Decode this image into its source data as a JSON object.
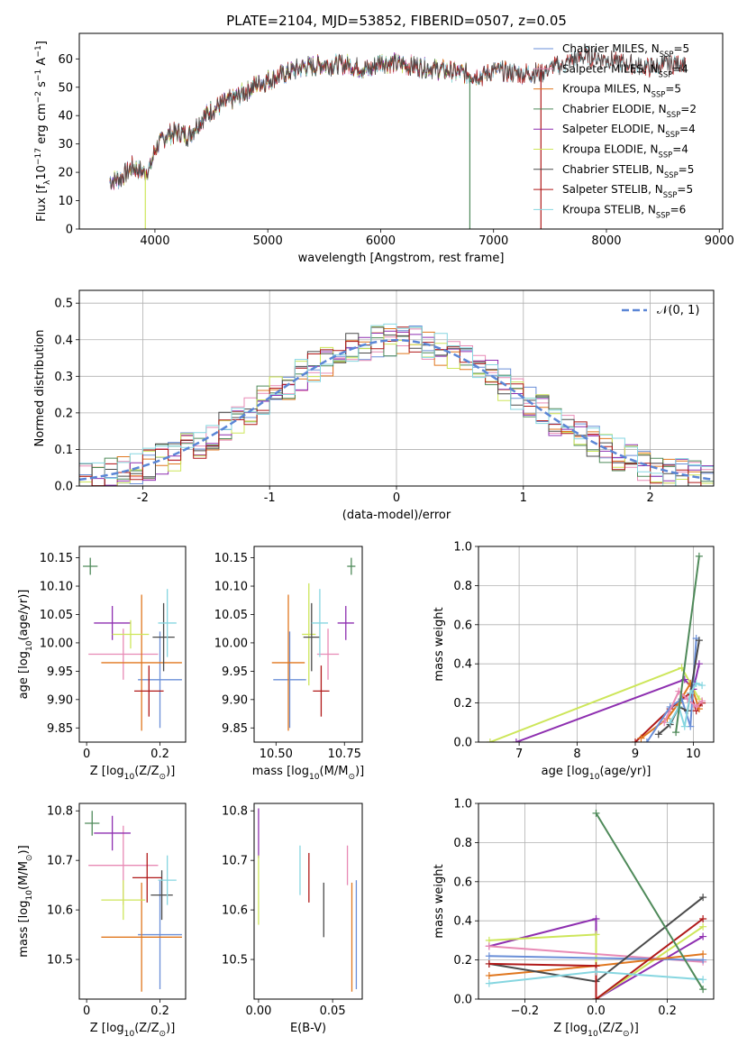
{
  "title": "PLATE=2104, MJD=53852, FIBERID=0507, z=0.05",
  "colors": {
    "chabrier_miles": "#6a8fd8",
    "salpeter_miles": "#e88ab5",
    "kroupa_miles": "#e0771f",
    "chabrier_elodie": "#4f8a5a",
    "salpeter_elodie": "#8e2fb0",
    "kroupa_elodie": "#cde65a",
    "chabrier_stelib": "#4a4a4a",
    "salpeter_stelib": "#b01919",
    "kroupa_stelib": "#86d6e0",
    "normal": "#5b86d6"
  },
  "chart_data": [
    {
      "id": "spectrum",
      "type": "line",
      "title": "PLATE=2104, MJD=53852, FIBERID=0507, z=0.05",
      "xlabel": "wavelength [Angstrom, rest frame]",
      "ylabel_parts": [
        "Flux [f",
        "λ",
        "10",
        "−17",
        " erg cm",
        "−2",
        " s",
        "−1",
        " A",
        "−1",
        "]"
      ],
      "xlim": [
        3330,
        9030
      ],
      "ylim": [
        0,
        69
      ],
      "xticks": [
        4000,
        5000,
        6000,
        7000,
        8000,
        9000
      ],
      "yticks": [
        0,
        10,
        20,
        30,
        40,
        50,
        60
      ],
      "grid": false,
      "legend_position": "right",
      "legend": [
        {
          "prefix": "Chabrier MILES, N",
          "sub": "SSP",
          "suffix": "=5",
          "color_key": "chabrier_miles"
        },
        {
          "prefix": "Salpeter MILES, N",
          "sub": "SSP",
          "suffix": "=4",
          "color_key": "salpeter_miles"
        },
        {
          "prefix": "Kroupa MILES, N",
          "sub": "SSP",
          "suffix": "=5",
          "color_key": "kroupa_miles"
        },
        {
          "prefix": "Chabrier ELODIE, N",
          "sub": "SSP",
          "suffix": "=2",
          "color_key": "chabrier_elodie"
        },
        {
          "prefix": "Salpeter ELODIE, N",
          "sub": "SSP",
          "suffix": "=4",
          "color_key": "salpeter_elodie"
        },
        {
          "prefix": "Kroupa ELODIE, N",
          "sub": "SSP",
          "suffix": "=4",
          "color_key": "kroupa_elodie"
        },
        {
          "prefix": "Chabrier STELIB, N",
          "sub": "SSP",
          "suffix": "=5",
          "color_key": "chabrier_stelib"
        },
        {
          "prefix": "Salpeter STELIB, N",
          "sub": "SSP",
          "suffix": "=5",
          "color_key": "salpeter_stelib"
        },
        {
          "prefix": "Kroupa STELIB, N",
          "sub": "SSP",
          "suffix": "=6",
          "color_key": "kroupa_stelib"
        }
      ],
      "continuum": {
        "x": [
          3600,
          3700,
          3800,
          3900,
          3960,
          4000,
          4100,
          4200,
          4300,
          4400,
          4500,
          4700,
          4900,
          5100,
          5300,
          5500,
          5700,
          5900,
          6000,
          6200,
          6400,
          6560,
          6700,
          6900,
          7000,
          7200,
          7400,
          7600,
          7800,
          8000,
          8200,
          8400,
          8700
        ],
        "y": [
          17,
          18,
          22,
          20,
          22,
          28,
          33,
          34,
          33,
          38,
          42,
          46,
          51,
          54,
          57,
          58,
          58,
          56,
          59,
          58,
          57,
          56,
          55,
          54,
          56,
          55,
          55,
          58,
          61,
          60,
          58,
          57,
          59
        ]
      },
      "spikes": [
        {
          "x": 3915,
          "y": 0
        },
        {
          "x": 6790,
          "y": 0
        },
        {
          "x": 7420,
          "y": 0
        }
      ],
      "end_wavelength": {
        "miles": 7400,
        "elodie": 6800,
        "stelib": 8700
      }
    },
    {
      "id": "residuals",
      "type": "line",
      "xlabel": "(data-model)/error",
      "ylabel": "Normed distribution",
      "xlim": [
        -2.5,
        2.5
      ],
      "ylim": [
        0,
        0.535
      ],
      "xticks": [
        -2,
        -1,
        0,
        1,
        2
      ],
      "yticks": [
        0.0,
        0.1,
        0.2,
        0.3,
        0.4,
        0.5
      ],
      "grid": true,
      "legend_position": "upper right",
      "legend": [
        {
          "label": "𝒩(0, 1)",
          "color_key": "normal",
          "style": "dashed"
        }
      ],
      "bin_width": 0.1
    },
    {
      "id": "age_vs_Z",
      "type": "scatter",
      "xlabel_parts": [
        "Z [log",
        "10",
        "(Z/Z",
        "⊙",
        ")]"
      ],
      "ylabel_parts": [
        "age  [log",
        "10",
        "(age/yr)]"
      ],
      "xlim": [
        -0.02,
        0.27
      ],
      "ylim": [
        9.825,
        10.17
      ],
      "xticks": [
        0.0,
        0.2
      ],
      "yticks": [
        9.85,
        9.9,
        9.95,
        10.0,
        10.05,
        10.1,
        10.15
      ],
      "ytick_labels": [
        "9.85",
        "9.90",
        "9.95",
        "10.00",
        "10.05",
        "10.10",
        "10.15"
      ],
      "grid": false,
      "points": [
        {
          "key": "chabrier_miles",
          "x": 0.2,
          "xerr": 0.06,
          "y": 9.935,
          "yerr": 0.085
        },
        {
          "key": "salpeter_miles",
          "x": 0.1,
          "xerr": 0.095,
          "y": 9.98,
          "yerr": 0.045
        },
        {
          "key": "kroupa_miles",
          "x": 0.15,
          "xerr": 0.11,
          "y": 9.965,
          "yerr": 0.12
        },
        {
          "key": "chabrier_elodie",
          "x": 0.01,
          "xerr": 0.02,
          "y": 10.135,
          "yerr": 0.015
        },
        {
          "key": "salpeter_elodie",
          "x": 0.07,
          "xerr": 0.05,
          "y": 10.035,
          "yerr": 0.03
        },
        {
          "key": "kroupa_elodie",
          "x": 0.12,
          "xerr": 0.05,
          "y": 10.015,
          "yerr": 0.025
        },
        {
          "key": "chabrier_stelib",
          "x": 0.21,
          "xerr": 0.03,
          "y": 10.01,
          "yerr": 0.06
        },
        {
          "key": "salpeter_stelib",
          "x": 0.17,
          "xerr": 0.04,
          "y": 9.915,
          "yerr": 0.045
        },
        {
          "key": "kroupa_stelib",
          "x": 0.22,
          "xerr": 0.025,
          "y": 10.035,
          "yerr": 0.06
        }
      ]
    },
    {
      "id": "age_vs_mass",
      "type": "scatter",
      "xlabel_parts": [
        "mass [log",
        "10",
        "(M/M",
        "⊙",
        ")]"
      ],
      "xlim": [
        10.42,
        10.815
      ],
      "ylim": [
        9.825,
        10.17
      ],
      "xticks": [
        10.5,
        10.75
      ],
      "xtick_labels": [
        "10.50",
        "10.75"
      ],
      "yticks": [
        9.85,
        9.9,
        9.95,
        10.0,
        10.05,
        10.1,
        10.15
      ],
      "ytick_labels": [
        "9.85",
        "9.90",
        "9.95",
        "10.00",
        "10.05",
        "10.10",
        "10.15"
      ],
      "grid": false,
      "points": [
        {
          "key": "chabrier_miles",
          "x": 10.55,
          "xerr": 0.06,
          "y": 9.935,
          "yerr": 0.085
        },
        {
          "key": "salpeter_miles",
          "x": 10.69,
          "xerr": 0.04,
          "y": 9.98,
          "yerr": 0.045
        },
        {
          "key": "kroupa_miles",
          "x": 10.545,
          "xerr": 0.06,
          "y": 9.965,
          "yerr": 0.12
        },
        {
          "key": "chabrier_elodie",
          "x": 10.775,
          "xerr": 0.015,
          "y": 10.135,
          "yerr": 0.015
        },
        {
          "key": "salpeter_elodie",
          "x": 10.755,
          "xerr": 0.03,
          "y": 10.035,
          "yerr": 0.03
        },
        {
          "key": "kroupa_elodie",
          "x": 10.62,
          "xerr": 0.025,
          "y": 10.015,
          "yerr": 0.09
        },
        {
          "key": "chabrier_stelib",
          "x": 10.63,
          "xerr": 0.03,
          "y": 10.01,
          "yerr": 0.06
        },
        {
          "key": "salpeter_stelib",
          "x": 10.665,
          "xerr": 0.03,
          "y": 9.915,
          "yerr": 0.045
        },
        {
          "key": "kroupa_stelib",
          "x": 10.66,
          "xerr": 0.03,
          "y": 10.035,
          "yerr": 0.06
        }
      ]
    },
    {
      "id": "mass_vs_Z",
      "type": "scatter",
      "xlabel_parts": [
        "Z [log",
        "10",
        "(Z/Z",
        "⊙",
        ")]"
      ],
      "ylabel_parts": [
        "mass [log",
        "10",
        "(M/M",
        "⊙",
        ")]"
      ],
      "xlim": [
        -0.02,
        0.27
      ],
      "ylim": [
        10.42,
        10.815
      ],
      "xticks": [
        0.0,
        0.2
      ],
      "yticks": [
        10.5,
        10.6,
        10.7,
        10.8
      ],
      "grid": false,
      "points": [
        {
          "key": "chabrier_miles",
          "x": 0.2,
          "xerr": 0.06,
          "y": 10.55,
          "yerr": 0.11
        },
        {
          "key": "salpeter_miles",
          "x": 0.1,
          "xerr": 0.095,
          "y": 10.69,
          "yerr": 0.08
        },
        {
          "key": "kroupa_miles",
          "x": 0.15,
          "xerr": 0.11,
          "y": 10.545,
          "yerr": 0.11
        },
        {
          "key": "chabrier_elodie",
          "x": 0.015,
          "xerr": 0.02,
          "y": 10.775,
          "yerr": 0.025
        },
        {
          "key": "salpeter_elodie",
          "x": 0.07,
          "xerr": 0.05,
          "y": 10.755,
          "yerr": 0.035
        },
        {
          "key": "kroupa_elodie",
          "x": 0.1,
          "xerr": 0.06,
          "y": 10.62,
          "yerr": 0.04
        },
        {
          "key": "chabrier_stelib",
          "x": 0.205,
          "xerr": 0.03,
          "y": 10.63,
          "yerr": 0.05
        },
        {
          "key": "salpeter_stelib",
          "x": 0.165,
          "xerr": 0.04,
          "y": 10.665,
          "yerr": 0.05
        },
        {
          "key": "kroupa_stelib",
          "x": 0.22,
          "xerr": 0.025,
          "y": 10.66,
          "yerr": 0.05
        }
      ]
    },
    {
      "id": "mass_vs_ebv",
      "type": "scatter",
      "xlabel": "E(B-V)",
      "xlim": [
        -0.003,
        0.07
      ],
      "ylim": [
        10.42,
        10.815
      ],
      "xticks": [
        0.0,
        0.05
      ],
      "xtick_labels": [
        "0.00",
        "0.05"
      ],
      "yticks": [
        10.5,
        10.6,
        10.7,
        10.8
      ],
      "grid": false,
      "points": [
        {
          "key": "chabrier_miles",
          "x": 0.066,
          "xerr": 0,
          "y": 10.55,
          "yerr": 0.11
        },
        {
          "key": "salpeter_miles",
          "x": 0.06,
          "xerr": 0,
          "y": 10.69,
          "yerr": 0.04
        },
        {
          "key": "kroupa_miles",
          "x": 0.063,
          "xerr": 0,
          "y": 10.545,
          "yerr": 0.11
        },
        {
          "key": "salpeter_elodie",
          "x": 0.0,
          "xerr": 0,
          "y": 10.755,
          "yerr": 0.05
        },
        {
          "key": "kroupa_elodie",
          "x": 0.0,
          "xerr": 0,
          "y": 10.64,
          "yerr": 0.07
        },
        {
          "key": "chabrier_stelib",
          "x": 0.044,
          "xerr": 0,
          "y": 10.6,
          "yerr": 0.055
        },
        {
          "key": "salpeter_stelib",
          "x": 0.034,
          "xerr": 0,
          "y": 10.665,
          "yerr": 0.05
        },
        {
          "key": "kroupa_stelib",
          "x": 0.028,
          "xerr": 0,
          "y": 10.68,
          "yerr": 0.05
        }
      ]
    },
    {
      "id": "weight_vs_age",
      "type": "line",
      "xlabel_parts": [
        "age  [log",
        "10",
        "(age/yr)]"
      ],
      "ylabel": "mass weight",
      "xlim": [
        6.3,
        10.35
      ],
      "ylim": [
        0,
        1.0
      ],
      "xticks": [
        7,
        8,
        9,
        10
      ],
      "yticks": [
        0.0,
        0.2,
        0.4,
        0.6,
        0.8,
        1.0
      ],
      "grid": true,
      "series": [
        {
          "key": "kroupa_elodie",
          "x": [
            6.5,
            9.8,
            9.95,
            10.1
          ],
          "y": [
            0.0,
            0.38,
            0.3,
            0.22
          ]
        },
        {
          "key": "salpeter_elodie",
          "x": [
            6.95,
            9.85,
            10.0,
            10.1
          ],
          "y": [
            0.0,
            0.32,
            0.27,
            0.4
          ]
        },
        {
          "key": "salpeter_stelib",
          "x": [
            9.0,
            9.6,
            9.8,
            9.95,
            10.05,
            10.15
          ],
          "y": [
            0.0,
            0.17,
            0.22,
            0.25,
            0.16,
            0.2
          ]
        },
        {
          "key": "kroupa_miles",
          "x": [
            9.1,
            9.55,
            9.75,
            9.95,
            10.1
          ],
          "y": [
            0.02,
            0.12,
            0.2,
            0.3,
            0.17
          ]
        },
        {
          "key": "chabrier_miles",
          "x": [
            9.2,
            9.6,
            9.8,
            9.95,
            10.05
          ],
          "y": [
            0.0,
            0.18,
            0.22,
            0.08,
            0.53
          ]
        },
        {
          "key": "chabrier_stelib",
          "x": [
            9.4,
            9.6,
            9.75,
            9.9,
            10.1
          ],
          "y": [
            0.04,
            0.09,
            0.18,
            0.16,
            0.52
          ]
        },
        {
          "key": "salpeter_miles",
          "x": [
            9.5,
            9.75,
            9.9,
            10.05,
            10.15
          ],
          "y": [
            0.1,
            0.26,
            0.22,
            0.18,
            0.21
          ]
        },
        {
          "key": "kroupa_stelib",
          "x": [
            9.6,
            9.75,
            9.85,
            9.95,
            10.05,
            10.15
          ],
          "y": [
            0.1,
            0.18,
            0.08,
            0.25,
            0.3,
            0.29
          ]
        },
        {
          "key": "chabrier_elodie",
          "x": [
            9.7,
            10.1
          ],
          "y": [
            0.05,
            0.95
          ]
        }
      ]
    },
    {
      "id": "weight_vs_Z",
      "type": "line",
      "xlabel_parts": [
        "Z [log",
        "10",
        "(Z/Z",
        "⊙",
        ")]"
      ],
      "ylabel": "mass weight",
      "xlim": [
        -0.33,
        0.33
      ],
      "ylim": [
        0,
        1.0
      ],
      "xticks": [
        -0.2,
        0.0,
        0.2
      ],
      "xtick_labels": [
        "−0.2",
        "0.0",
        "0.2"
      ],
      "yticks": [
        0.0,
        0.2,
        0.4,
        0.6,
        0.8,
        1.0
      ],
      "grid": true,
      "series": [
        {
          "key": "salpeter_elodie",
          "x": [
            -0.3,
            0.0,
            0.0,
            0.3
          ],
          "y": [
            0.27,
            0.41,
            0.0,
            0.32
          ]
        },
        {
          "key": "kroupa_elodie",
          "x": [
            -0.3,
            0.0,
            0.0,
            0.3
          ],
          "y": [
            0.3,
            0.33,
            0.0,
            0.37
          ]
        },
        {
          "key": "salpeter_miles",
          "x": [
            -0.3,
            0.3
          ],
          "y": [
            0.27,
            0.19
          ]
        },
        {
          "key": "chabrier_miles",
          "x": [
            -0.3,
            0.3
          ],
          "y": [
            0.22,
            0.2
          ]
        },
        {
          "key": "kroupa_miles",
          "x": [
            -0.3,
            0.0,
            0.3
          ],
          "y": [
            0.12,
            0.17,
            0.23
          ]
        },
        {
          "key": "chabrier_stelib",
          "x": [
            -0.3,
            0.0,
            0.3
          ],
          "y": [
            0.18,
            0.09,
            0.52
          ]
        },
        {
          "key": "salpeter_stelib",
          "x": [
            -0.3,
            0.0,
            0.0,
            0.3
          ],
          "y": [
            0.18,
            0.17,
            0.0,
            0.41
          ]
        },
        {
          "key": "kroupa_stelib",
          "x": [
            -0.3,
            0.0,
            0.3
          ],
          "y": [
            0.08,
            0.14,
            0.1
          ]
        },
        {
          "key": "chabrier_elodie",
          "x": [
            0.0,
            0.3
          ],
          "y": [
            0.95,
            0.05
          ]
        }
      ]
    }
  ]
}
